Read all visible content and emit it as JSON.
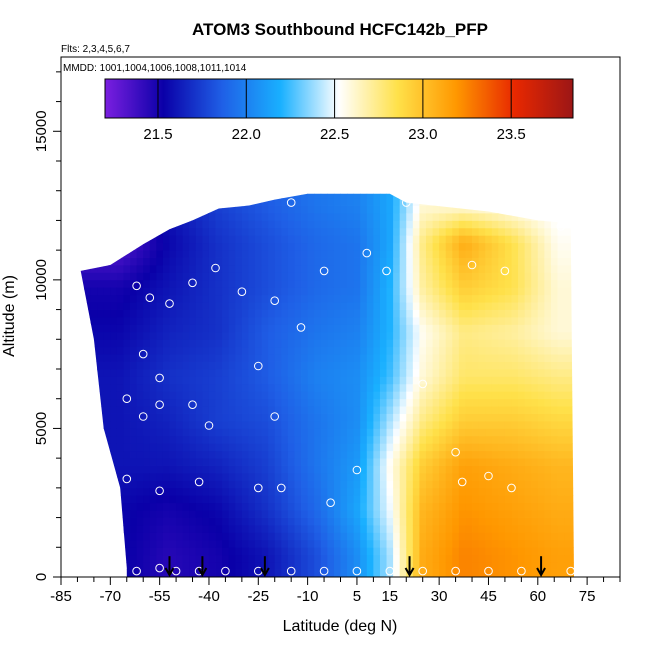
{
  "chart_data": {
    "type": "heatmap",
    "title": "ATOM3 Southbound HCFC142b_PFP",
    "subtitle": "Flts: 2,3,4,5,6,7",
    "annotation": "MMDD: 1001,1004,1006,1008,1011,1014",
    "xlabel": "Latitude (deg N)",
    "ylabel": "Altitude (m)",
    "xlim": [
      -85,
      85
    ],
    "ylim": [
      0,
      17500
    ],
    "x_ticks": [
      -85,
      -70,
      -55,
      -40,
      -25,
      -10,
      5,
      15,
      30,
      45,
      60,
      75
    ],
    "y_ticks": [
      0,
      5000,
      10000,
      15000
    ],
    "colorbar": {
      "ticks": [
        21.5,
        22.0,
        22.5,
        23.0,
        23.5
      ],
      "range": [
        21.2,
        23.85
      ],
      "colors": [
        "#7b1fe0",
        "#0a00a8",
        "#1f5fe6",
        "#19b0ff",
        "#ffffff",
        "#ffe14a",
        "#ff9800",
        "#e82800",
        "#9c1616"
      ]
    },
    "field": {
      "lat_edges": [
        -75,
        -60,
        -45,
        -30,
        -15,
        0,
        10,
        20,
        30,
        45,
        60,
        72
      ],
      "alt_edges": [
        0,
        1500,
        3000,
        4500,
        6000,
        7500,
        9000,
        10500,
        12000,
        13000
      ],
      "values": [
        [
          21.55,
          21.45,
          21.5,
          21.6,
          21.8,
          22.05,
          22.4,
          23.1,
          23.25,
          23.2,
          23.15
        ],
        [
          21.55,
          21.5,
          21.55,
          21.7,
          21.9,
          22.15,
          22.5,
          23.05,
          23.2,
          23.15,
          23.1
        ],
        [
          21.6,
          21.6,
          21.65,
          21.75,
          21.95,
          22.1,
          22.55,
          22.95,
          23.15,
          23.1,
          23.05
        ],
        [
          21.6,
          21.65,
          21.75,
          21.8,
          21.95,
          22.05,
          22.4,
          22.75,
          22.95,
          22.95,
          22.9
        ],
        [
          21.6,
          21.7,
          21.75,
          21.85,
          22.0,
          22.05,
          22.25,
          22.6,
          22.8,
          22.8,
          22.75
        ],
        [
          21.55,
          21.65,
          21.7,
          21.85,
          21.95,
          22.0,
          22.2,
          22.55,
          22.75,
          22.7,
          22.6
        ],
        [
          21.5,
          21.6,
          21.7,
          21.8,
          21.9,
          21.95,
          22.2,
          22.7,
          22.95,
          22.85,
          22.6
        ],
        [
          21.3,
          21.55,
          21.7,
          21.8,
          21.9,
          21.95,
          22.15,
          22.75,
          23.1,
          22.85,
          22.55
        ],
        [
          21.5,
          21.6,
          21.75,
          21.85,
          21.95,
          22.0,
          22.15,
          22.6,
          22.6,
          22.55,
          22.5
        ]
      ]
    },
    "coverage": {
      "top": [
        [
          -79,
          10300
        ],
        [
          -70,
          10500
        ],
        [
          -60,
          11200
        ],
        [
          -52,
          11700
        ],
        [
          -45,
          12000
        ],
        [
          -37,
          12400
        ],
        [
          -28,
          12500
        ],
        [
          -20,
          12700
        ],
        [
          -10,
          12900
        ],
        [
          15,
          12900
        ],
        [
          20,
          12600
        ],
        [
          45,
          12300
        ],
        [
          60,
          12000
        ],
        [
          70,
          11900
        ],
        [
          71,
          0
        ]
      ],
      "bottom_left": [
        [
          -79,
          10300
        ],
        [
          -75,
          8000
        ],
        [
          -72,
          5000
        ],
        [
          -67,
          3000
        ],
        [
          -65,
          300
        ],
        [
          -65,
          0
        ]
      ]
    },
    "sample_points": [
      [
        -62,
        9800
      ],
      [
        -58,
        9400
      ],
      [
        -52,
        9200
      ],
      [
        -45,
        9900
      ],
      [
        -38,
        10400
      ],
      [
        -30,
        9600
      ],
      [
        -20,
        9300
      ],
      [
        -12,
        8400
      ],
      [
        -5,
        10300
      ],
      [
        8,
        10900
      ],
      [
        14,
        10300
      ],
      [
        40,
        10500
      ],
      [
        50,
        10300
      ],
      [
        -65,
        6000
      ],
      [
        -60,
        5400
      ],
      [
        -55,
        5800
      ],
      [
        -45,
        5800
      ],
      [
        -40,
        5100
      ],
      [
        -25,
        7100
      ],
      [
        -20,
        5400
      ],
      [
        -65,
        3300
      ],
      [
        -55,
        2900
      ],
      [
        -43,
        3200
      ],
      [
        -25,
        3000
      ],
      [
        -18,
        3000
      ],
      [
        -3,
        2500
      ],
      [
        5,
        3600
      ],
      [
        37,
        3200
      ],
      [
        45,
        3400
      ],
      [
        52,
        3000
      ],
      [
        -68,
        200
      ],
      [
        -62,
        200
      ],
      [
        -55,
        300
      ],
      [
        -50,
        200
      ],
      [
        -43,
        200
      ],
      [
        -35,
        200
      ],
      [
        -25,
        200
      ],
      [
        -15,
        200
      ],
      [
        -5,
        200
      ],
      [
        5,
        200
      ],
      [
        15,
        200
      ],
      [
        25,
        200
      ],
      [
        35,
        200
      ],
      [
        45,
        200
      ],
      [
        55,
        200
      ],
      [
        70,
        200
      ],
      [
        -15,
        12600
      ],
      [
        20,
        12600
      ],
      [
        67,
        11800
      ],
      [
        25,
        6500
      ],
      [
        35,
        4200
      ],
      [
        -60,
        7500
      ],
      [
        -55,
        6700
      ]
    ],
    "flight_markers": [
      -52,
      -42,
      -23,
      21,
      61
    ]
  }
}
